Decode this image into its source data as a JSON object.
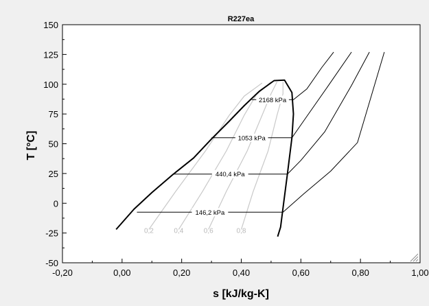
{
  "chart_data": {
    "type": "line",
    "title": "R227ea",
    "xlabel": "s [kJ/kg-K]",
    "ylabel": "T [°C]",
    "xlim": [
      -0.2,
      1.0
    ],
    "ylim": [
      -50,
      150
    ],
    "x_ticks": [
      -0.2,
      0.0,
      0.2,
      0.4,
      0.6,
      0.8,
      1.0
    ],
    "x_tick_labels": [
      "-0,20",
      "0,00",
      "0,20",
      "0,40",
      "0,60",
      "0,80",
      "1,00"
    ],
    "y_ticks": [
      -50,
      -25,
      0,
      25,
      50,
      75,
      100,
      125,
      150
    ],
    "y_tick_labels": [
      "-50",
      "-25",
      "0",
      "25",
      "50",
      "75",
      "100",
      "125",
      "150"
    ],
    "grid": false,
    "colors": {
      "background": "#f0f0f0",
      "plot_background": "#ffffff",
      "dome": "#000000",
      "isobar": "#000000",
      "quality": "#c8c8c8"
    },
    "saturation_dome": [
      {
        "x": -0.02,
        "y": -22
      },
      {
        "x": 0.04,
        "y": -5
      },
      {
        "x": 0.1,
        "y": 9
      },
      {
        "x": 0.17,
        "y": 24
      },
      {
        "x": 0.24,
        "y": 38
      },
      {
        "x": 0.3,
        "y": 54
      },
      {
        "x": 0.36,
        "y": 69
      },
      {
        "x": 0.41,
        "y": 82
      },
      {
        "x": 0.46,
        "y": 94
      },
      {
        "x": 0.51,
        "y": 103
      },
      {
        "x": 0.545,
        "y": 103.5
      },
      {
        "x": 0.57,
        "y": 93
      },
      {
        "x": 0.575,
        "y": 75
      },
      {
        "x": 0.57,
        "y": 55
      },
      {
        "x": 0.555,
        "y": 25
      },
      {
        "x": 0.542,
        "y": 0
      },
      {
        "x": 0.532,
        "y": -20
      },
      {
        "x": 0.522,
        "y": -28
      }
    ],
    "isobars": [
      {
        "name": "146,2 kPa",
        "y": -7.5,
        "points": [
          {
            "x": 0.05,
            "y": -7.5
          },
          {
            "x": 0.54,
            "y": -7.5
          },
          {
            "x": 0.61,
            "y": 8
          },
          {
            "x": 0.7,
            "y": 27
          },
          {
            "x": 0.79,
            "y": 51
          },
          {
            "x": 0.88,
            "y": 127
          }
        ]
      },
      {
        "name": "440,4 kPa",
        "y": 24.5,
        "points": [
          {
            "x": 0.17,
            "y": 24.5
          },
          {
            "x": 0.555,
            "y": 24.5
          },
          {
            "x": 0.6,
            "y": 36
          },
          {
            "x": 0.68,
            "y": 60
          },
          {
            "x": 0.77,
            "y": 99
          },
          {
            "x": 0.83,
            "y": 127
          }
        ]
      },
      {
        "name": "1053 kPa",
        "y": 55,
        "points": [
          {
            "x": 0.3,
            "y": 55
          },
          {
            "x": 0.57,
            "y": 55
          },
          {
            "x": 0.62,
            "y": 73
          },
          {
            "x": 0.69,
            "y": 98
          },
          {
            "x": 0.77,
            "y": 127
          }
        ]
      },
      {
        "name": "2168 kPa",
        "y": 87,
        "points": [
          {
            "x": 0.435,
            "y": 87
          },
          {
            "x": 0.575,
            "y": 87
          },
          {
            "x": 0.62,
            "y": 96
          },
          {
            "x": 0.67,
            "y": 114
          },
          {
            "x": 0.71,
            "y": 127
          }
        ]
      }
    ],
    "quality_lines": [
      {
        "name": "0,2",
        "points": [
          {
            "x": 0.09,
            "y": -22
          },
          {
            "x": 0.18,
            "y": 10
          },
          {
            "x": 0.28,
            "y": 44
          },
          {
            "x": 0.36,
            "y": 74
          },
          {
            "x": 0.41,
            "y": 90
          },
          {
            "x": 0.47,
            "y": 101
          }
        ]
      },
      {
        "name": "0,4",
        "points": [
          {
            "x": 0.19,
            "y": -22
          },
          {
            "x": 0.27,
            "y": 10
          },
          {
            "x": 0.35,
            "y": 44
          },
          {
            "x": 0.41,
            "y": 74
          },
          {
            "x": 0.45,
            "y": 91
          },
          {
            "x": 0.5,
            "y": 102
          }
        ]
      },
      {
        "name": "0,6",
        "points": [
          {
            "x": 0.29,
            "y": -22
          },
          {
            "x": 0.35,
            "y": 10
          },
          {
            "x": 0.42,
            "y": 44
          },
          {
            "x": 0.47,
            "y": 74
          },
          {
            "x": 0.5,
            "y": 92
          },
          {
            "x": 0.52,
            "y": 102
          }
        ]
      },
      {
        "name": "0,8",
        "points": [
          {
            "x": 0.4,
            "y": -22
          },
          {
            "x": 0.44,
            "y": 10
          },
          {
            "x": 0.49,
            "y": 44
          },
          {
            "x": 0.52,
            "y": 74
          },
          {
            "x": 0.54,
            "y": 92
          },
          {
            "x": 0.54,
            "y": 102
          }
        ]
      }
    ]
  }
}
